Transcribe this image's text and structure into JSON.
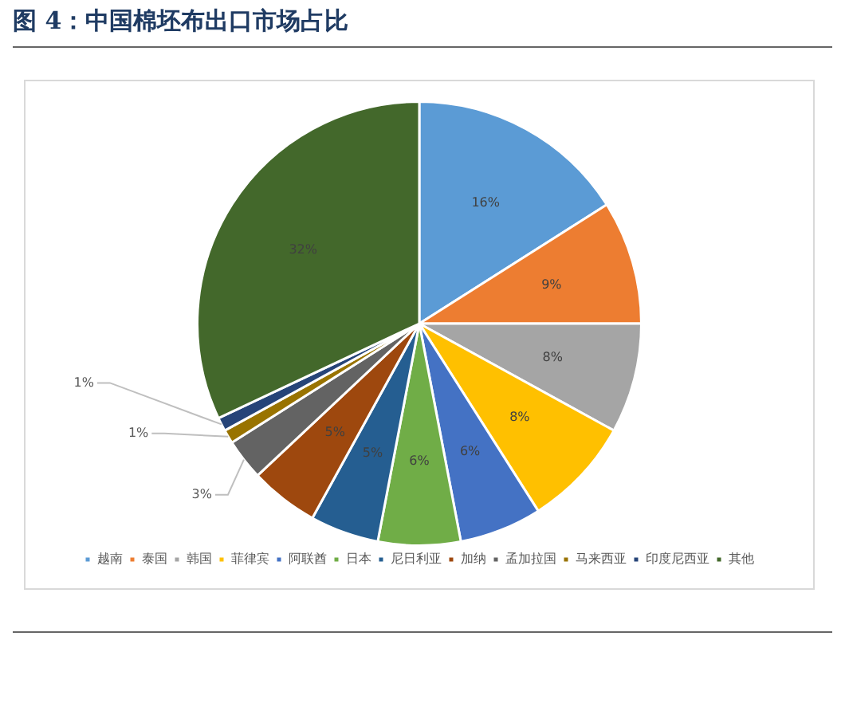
{
  "chart_data": {
    "type": "pie",
    "title": "图 4：中国棉坯布出口市场占比",
    "categories": [
      "越南",
      "泰国",
      "韩国",
      "菲律宾",
      "阿联酋",
      "日本",
      "尼日利亚",
      "加纳",
      "孟加拉国",
      "马来西亚",
      "印度尼西亚",
      "其他"
    ],
    "values": [
      16,
      9,
      8,
      8,
      6,
      6,
      5,
      5,
      3,
      1,
      1,
      32
    ],
    "colors": [
      "#5b9bd5",
      "#ed7d31",
      "#a5a5a5",
      "#ffc000",
      "#4472c4",
      "#70ad47",
      "#255e91",
      "#9e480e",
      "#636363",
      "#997300",
      "#264478",
      "#43682b"
    ],
    "value_labels": [
      "16%",
      "9%",
      "8%",
      "8%",
      "6%",
      "6%",
      "5%",
      "5%",
      "3%",
      "1%",
      "1%",
      "32%"
    ],
    "legend": "bottom"
  }
}
